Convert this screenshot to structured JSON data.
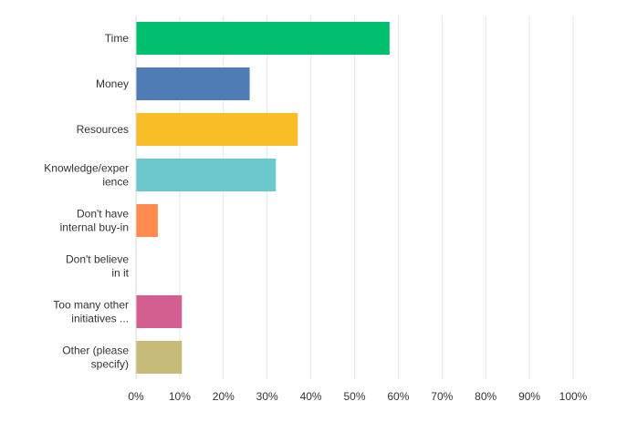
{
  "chart_data": {
    "type": "bar",
    "orientation": "horizontal",
    "categories": [
      [
        "Time"
      ],
      [
        "Money"
      ],
      [
        "Resources"
      ],
      [
        "Knowledge/exper",
        "ience"
      ],
      [
        "Don't have",
        "internal buy-in"
      ],
      [
        "Don't believe",
        "in it"
      ],
      [
        "Too many other",
        "initiatives ..."
      ],
      [
        "Other (please",
        "specify)"
      ]
    ],
    "values": [
      58,
      26,
      37,
      32,
      5,
      0,
      10.5,
      10.5
    ],
    "colors": [
      "#00bf6f",
      "#507cb6",
      "#f9be25",
      "#6bc8cd",
      "#ff8b4f",
      "#7f6d9d",
      "#d25f90",
      "#c7bb7a"
    ],
    "xlim": [
      0,
      100
    ],
    "x_ticks": [
      "0%",
      "10%",
      "20%",
      "30%",
      "40%",
      "50%",
      "60%",
      "70%",
      "80%",
      "90%",
      "100%"
    ],
    "grid": true
  }
}
